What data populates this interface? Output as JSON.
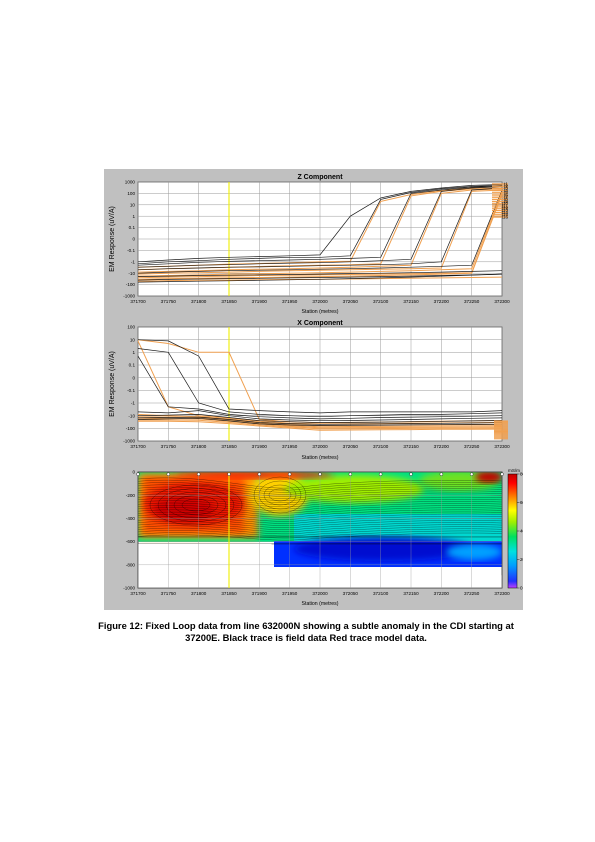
{
  "caption": {
    "line1": "Figure 12: Fixed Loop data from line 632000N showing a subtle anomaly in the CDI starting at",
    "line2": "37200E.  Black trace is field data Red trace model data."
  },
  "colors": {
    "panel_bg": "#c0c0c0",
    "plot_bg": "#ffffff",
    "grid": "#9a9a9a",
    "field_trace": "#1a1a1a",
    "model_trace": "#f0a050",
    "marker_line": "#eeee00"
  },
  "chart_data": [
    {
      "type": "line",
      "title": "Z Component",
      "xlabel": "Station (metres)",
      "ylabel": "EM Response (uV/A)",
      "y_scale": "symlog",
      "xlim": [
        371700,
        372300
      ],
      "ylim": [
        -1000,
        1000
      ],
      "x_ticks": [
        "371700",
        "371750",
        "371800",
        "371850",
        "371900",
        "371950",
        "372000",
        "372050",
        "372100",
        "372150",
        "372200",
        "372250",
        "372300"
      ],
      "y_ticks": [
        "1000",
        "100",
        "10",
        "1",
        "0.1",
        "0",
        "-0.1",
        "-1",
        "-10",
        "-100",
        "-1000"
      ],
      "y_tick_values": [
        1000,
        100,
        10,
        1,
        0.1,
        0,
        -0.1,
        -1,
        -10,
        -100,
        -1000
      ],
      "marker_x": 371850,
      "x": [
        371700,
        371750,
        371800,
        371850,
        371900,
        371950,
        372000,
        372050,
        372100,
        372150,
        372200,
        372250,
        372300
      ],
      "series": [
        {
          "values": [
            -1,
            -0.7,
            -0.5,
            -0.4,
            -0.35,
            -0.3,
            -0.25,
            1,
            40,
            150,
            300,
            500,
            600
          ],
          "kind": "field"
        },
        {
          "values": [
            -1.5,
            -1,
            -0.8,
            -0.6,
            -0.5,
            -0.4,
            -0.4,
            -0.3,
            30,
            120,
            250,
            400,
            500
          ],
          "kind": "field"
        },
        {
          "values": [
            -2,
            -1.5,
            -1.1,
            -0.9,
            -0.8,
            -0.7,
            -0.6,
            -0.5,
            -0.4,
            100,
            200,
            350,
            450
          ],
          "kind": "field"
        },
        {
          "values": [
            -3,
            -2.5,
            -2,
            -1.8,
            -1.5,
            -1.3,
            -1.2,
            -1,
            -0.8,
            -0.6,
            150,
            300,
            400
          ],
          "kind": "field"
        },
        {
          "values": [
            -5,
            -4,
            -3.5,
            -3,
            -2.8,
            -2.5,
            -2.2,
            -2,
            -1.8,
            -1.5,
            -1,
            200,
            300
          ],
          "kind": "field"
        },
        {
          "values": [
            -10,
            -8,
            -7,
            -6,
            -5.5,
            -5,
            -4.5,
            -4,
            -3.5,
            -3,
            -2.5,
            -2,
            200
          ],
          "kind": "field"
        },
        {
          "values": [
            -20,
            -18,
            -16,
            -15,
            -14,
            -13,
            -12,
            -11,
            -10,
            -9,
            -8,
            -7,
            -6
          ],
          "kind": "field"
        },
        {
          "values": [
            -40,
            -35,
            -32,
            -30,
            -28,
            -26,
            -24,
            -22,
            -20,
            -18,
            -16,
            -14,
            -12
          ],
          "kind": "field"
        },
        {
          "values": [
            -60,
            -55,
            -50,
            -46,
            -42,
            -38,
            -34,
            -30,
            -26,
            -22,
            -18,
            -15,
            -12
          ],
          "kind": "field"
        },
        {
          "values": [
            -3,
            -2.5,
            -2,
            -1.6,
            -1.4,
            -1.2,
            -1,
            -0.9,
            20,
            80,
            180,
            300,
            400
          ],
          "kind": "model"
        },
        {
          "values": [
            -5,
            -4,
            -3.5,
            -3,
            -2.6,
            -2.2,
            -2,
            -1.8,
            -1.5,
            60,
            150,
            250,
            300
          ],
          "kind": "model"
        },
        {
          "values": [
            -8,
            -7,
            -6,
            -5,
            -4.5,
            -4,
            -3.5,
            -3,
            -2.5,
            -2,
            100,
            200,
            250
          ],
          "kind": "model"
        },
        {
          "values": [
            -12,
            -10,
            -9,
            -8,
            -7,
            -6,
            -5.5,
            -5,
            -4.5,
            -4,
            -3.5,
            150,
            200
          ],
          "kind": "model"
        },
        {
          "values": [
            -18,
            -16,
            -14,
            -12,
            -11,
            -10,
            -9,
            -8,
            -7,
            -6,
            -5,
            -4,
            150
          ],
          "kind": "model"
        },
        {
          "values": [
            -25,
            -22,
            -20,
            -18,
            -16,
            -15,
            -14,
            -13,
            -12,
            -11,
            -10,
            -9,
            100
          ],
          "kind": "model"
        },
        {
          "values": [
            -35,
            -30,
            -28,
            -26,
            -24,
            -22,
            -20,
            -18,
            -16,
            -14,
            -12,
            -10,
            80
          ],
          "kind": "model"
        },
        {
          "values": [
            -50,
            -45,
            -42,
            -40,
            -38,
            -36,
            -34,
            -32,
            -30,
            -28,
            -26,
            -24,
            -22
          ],
          "kind": "model"
        }
      ],
      "end_labels": [
        "t1",
        "t2",
        "t3",
        "t4",
        "t5",
        "t6",
        "t7",
        "t8",
        "t9",
        "t10",
        "t11",
        "t12",
        "t13",
        "t14",
        "t15",
        "t16"
      ]
    },
    {
      "type": "line",
      "title": "X Component",
      "xlabel": "Station (metres)",
      "ylabel": "EM Response (uV/A)",
      "y_scale": "symlog",
      "xlim": [
        371700,
        372300
      ],
      "ylim": [
        -1000,
        100
      ],
      "x_ticks": [
        "371700",
        "371750",
        "371800",
        "371850",
        "371900",
        "371950",
        "372000",
        "372050",
        "372100",
        "372150",
        "372200",
        "372250",
        "372300"
      ],
      "y_ticks": [
        "100",
        "10",
        "1",
        "0.1",
        "0",
        "-0.1",
        "-1",
        "-10",
        "-100",
        "-1000"
      ],
      "y_tick_values": [
        100,
        10,
        1,
        0.1,
        0,
        -0.1,
        -1,
        -10,
        -100,
        -1000
      ],
      "marker_x": 371850,
      "x": [
        371700,
        371750,
        371800,
        371850,
        371900,
        371950,
        372000,
        372050,
        372100,
        372150,
        372200,
        372250,
        372300
      ],
      "series": [
        {
          "values": [
            10,
            8,
            0.5,
            -3,
            -4,
            -5,
            -6,
            -5,
            -5,
            -5,
            -5,
            -5,
            -4
          ],
          "kind": "field"
        },
        {
          "values": [
            2,
            1,
            -1,
            -5,
            -8,
            -10,
            -12,
            -10,
            -9,
            -8,
            -8,
            -7,
            -6
          ],
          "kind": "field"
        },
        {
          "values": [
            0.5,
            -2,
            -3,
            -8,
            -12,
            -15,
            -18,
            -16,
            -14,
            -13,
            -12,
            -11,
            -10
          ],
          "kind": "field"
        },
        {
          "values": [
            -5,
            -6,
            -4,
            -10,
            -18,
            -22,
            -25,
            -24,
            -22,
            -20,
            -18,
            -16,
            -15
          ],
          "kind": "field"
        },
        {
          "values": [
            -10,
            -9,
            -8,
            -14,
            -25,
            -30,
            -35,
            -34,
            -32,
            -30,
            -28,
            -26,
            -24
          ],
          "kind": "field"
        },
        {
          "values": [
            -15,
            -14,
            -13,
            -20,
            -35,
            -42,
            -48,
            -46,
            -44,
            -42,
            -40,
            -38,
            -36
          ],
          "kind": "field"
        },
        {
          "values": [
            -20,
            -18,
            -16,
            -26,
            -45,
            -55,
            -60,
            -58,
            -56,
            -54,
            -52,
            -50,
            -48
          ],
          "kind": "field"
        },
        {
          "values": [
            10,
            5,
            1,
            1,
            -20,
            -30,
            -36,
            -34,
            -32,
            -30,
            -28,
            -26,
            -24
          ],
          "kind": "model"
        },
        {
          "values": [
            8,
            -2,
            -10,
            -15,
            -25,
            -40,
            -45,
            -44,
            -42,
            -40,
            -38,
            -36,
            -34
          ],
          "kind": "model"
        },
        {
          "values": [
            -8,
            -10,
            -12,
            -18,
            -30,
            -50,
            -60,
            -58,
            -56,
            -54,
            -52,
            -50,
            -48
          ],
          "kind": "model"
        },
        {
          "values": [
            -12,
            -13,
            -14,
            -22,
            -38,
            -60,
            -75,
            -72,
            -70,
            -68,
            -66,
            -64,
            -62
          ],
          "kind": "model"
        },
        {
          "values": [
            -16,
            -17,
            -18,
            -28,
            -45,
            -70,
            -90,
            -88,
            -86,
            -84,
            -82,
            -80,
            -78
          ],
          "kind": "model"
        },
        {
          "values": [
            -22,
            -22,
            -23,
            -34,
            -55,
            -80,
            -110,
            -108,
            -105,
            -102,
            -100,
            -98,
            -96
          ],
          "kind": "model"
        },
        {
          "values": [
            -28,
            -28,
            -30,
            -42,
            -65,
            -95,
            -140,
            -135,
            -130,
            -125,
            -120,
            -118,
            -115
          ],
          "kind": "model"
        }
      ]
    },
    {
      "type": "heatmap",
      "title": "",
      "xlabel": "Station (metres)",
      "ylabel": "",
      "xlim": [
        371700,
        372300
      ],
      "ylim": [
        -1000,
        0
      ],
      "x_ticks": [
        "371700",
        "371750",
        "371800",
        "371850",
        "371900",
        "371950",
        "372000",
        "372050",
        "372100",
        "372150",
        "372200",
        "372250",
        "372300"
      ],
      "y_ticks": [
        "0",
        "-200",
        "-400",
        "-600",
        "-800",
        "-1000"
      ],
      "y_tick_values": [
        0,
        -200,
        -400,
        -600,
        -800,
        -1000
      ],
      "marker_x": 371850,
      "colorbar_unit": "mS/m",
      "colorbar_ticks": [
        "800",
        "600",
        "400",
        "200",
        "0"
      ],
      "colorbar_values": [
        800,
        600,
        400,
        200,
        0
      ],
      "clim": [
        0,
        800
      ],
      "depth_of_section": [
        {
          "x": 371700,
          "depth": -620
        },
        {
          "x": 371920,
          "depth": -620
        },
        {
          "x": 371920,
          "depth": -820
        },
        {
          "x": 371975,
          "depth": -820
        },
        {
          "x": 371975,
          "depth": -860
        },
        {
          "x": 372040,
          "depth": -860
        },
        {
          "x": 372040,
          "depth": -890
        },
        {
          "x": 372300,
          "depth": -890
        }
      ]
    }
  ]
}
